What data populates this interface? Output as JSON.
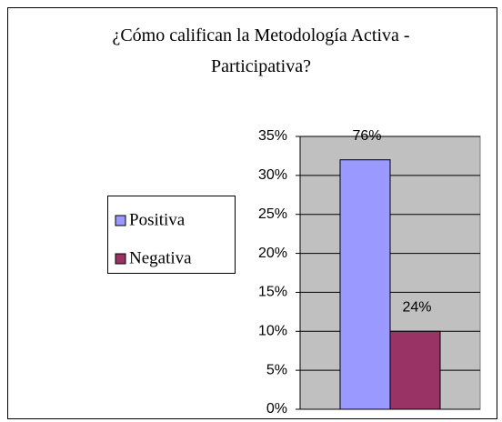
{
  "chart_data": {
    "type": "bar",
    "title": "¿Cómo califican la Metodología Activa - Participativa?",
    "categories": [
      null
    ],
    "series": [
      {
        "name": "Positiva",
        "color": "#9999ff",
        "values": [
          32
        ]
      },
      {
        "name": "Negativa",
        "color": "#993366",
        "values": [
          10
        ]
      }
    ],
    "annotations": [
      "76%",
      "24%"
    ],
    "ylim": [
      0,
      35
    ],
    "yticks": [
      {
        "value": 0,
        "label": "0%"
      },
      {
        "value": 5,
        "label": "5%"
      },
      {
        "value": 10,
        "label": "10%"
      },
      {
        "value": 15,
        "label": "15%"
      },
      {
        "value": 20,
        "label": "20%"
      },
      {
        "value": 25,
        "label": "25%"
      },
      {
        "value": 30,
        "label": "30%"
      },
      {
        "value": 35,
        "label": "35%"
      }
    ],
    "grid": true,
    "legend": "left"
  }
}
